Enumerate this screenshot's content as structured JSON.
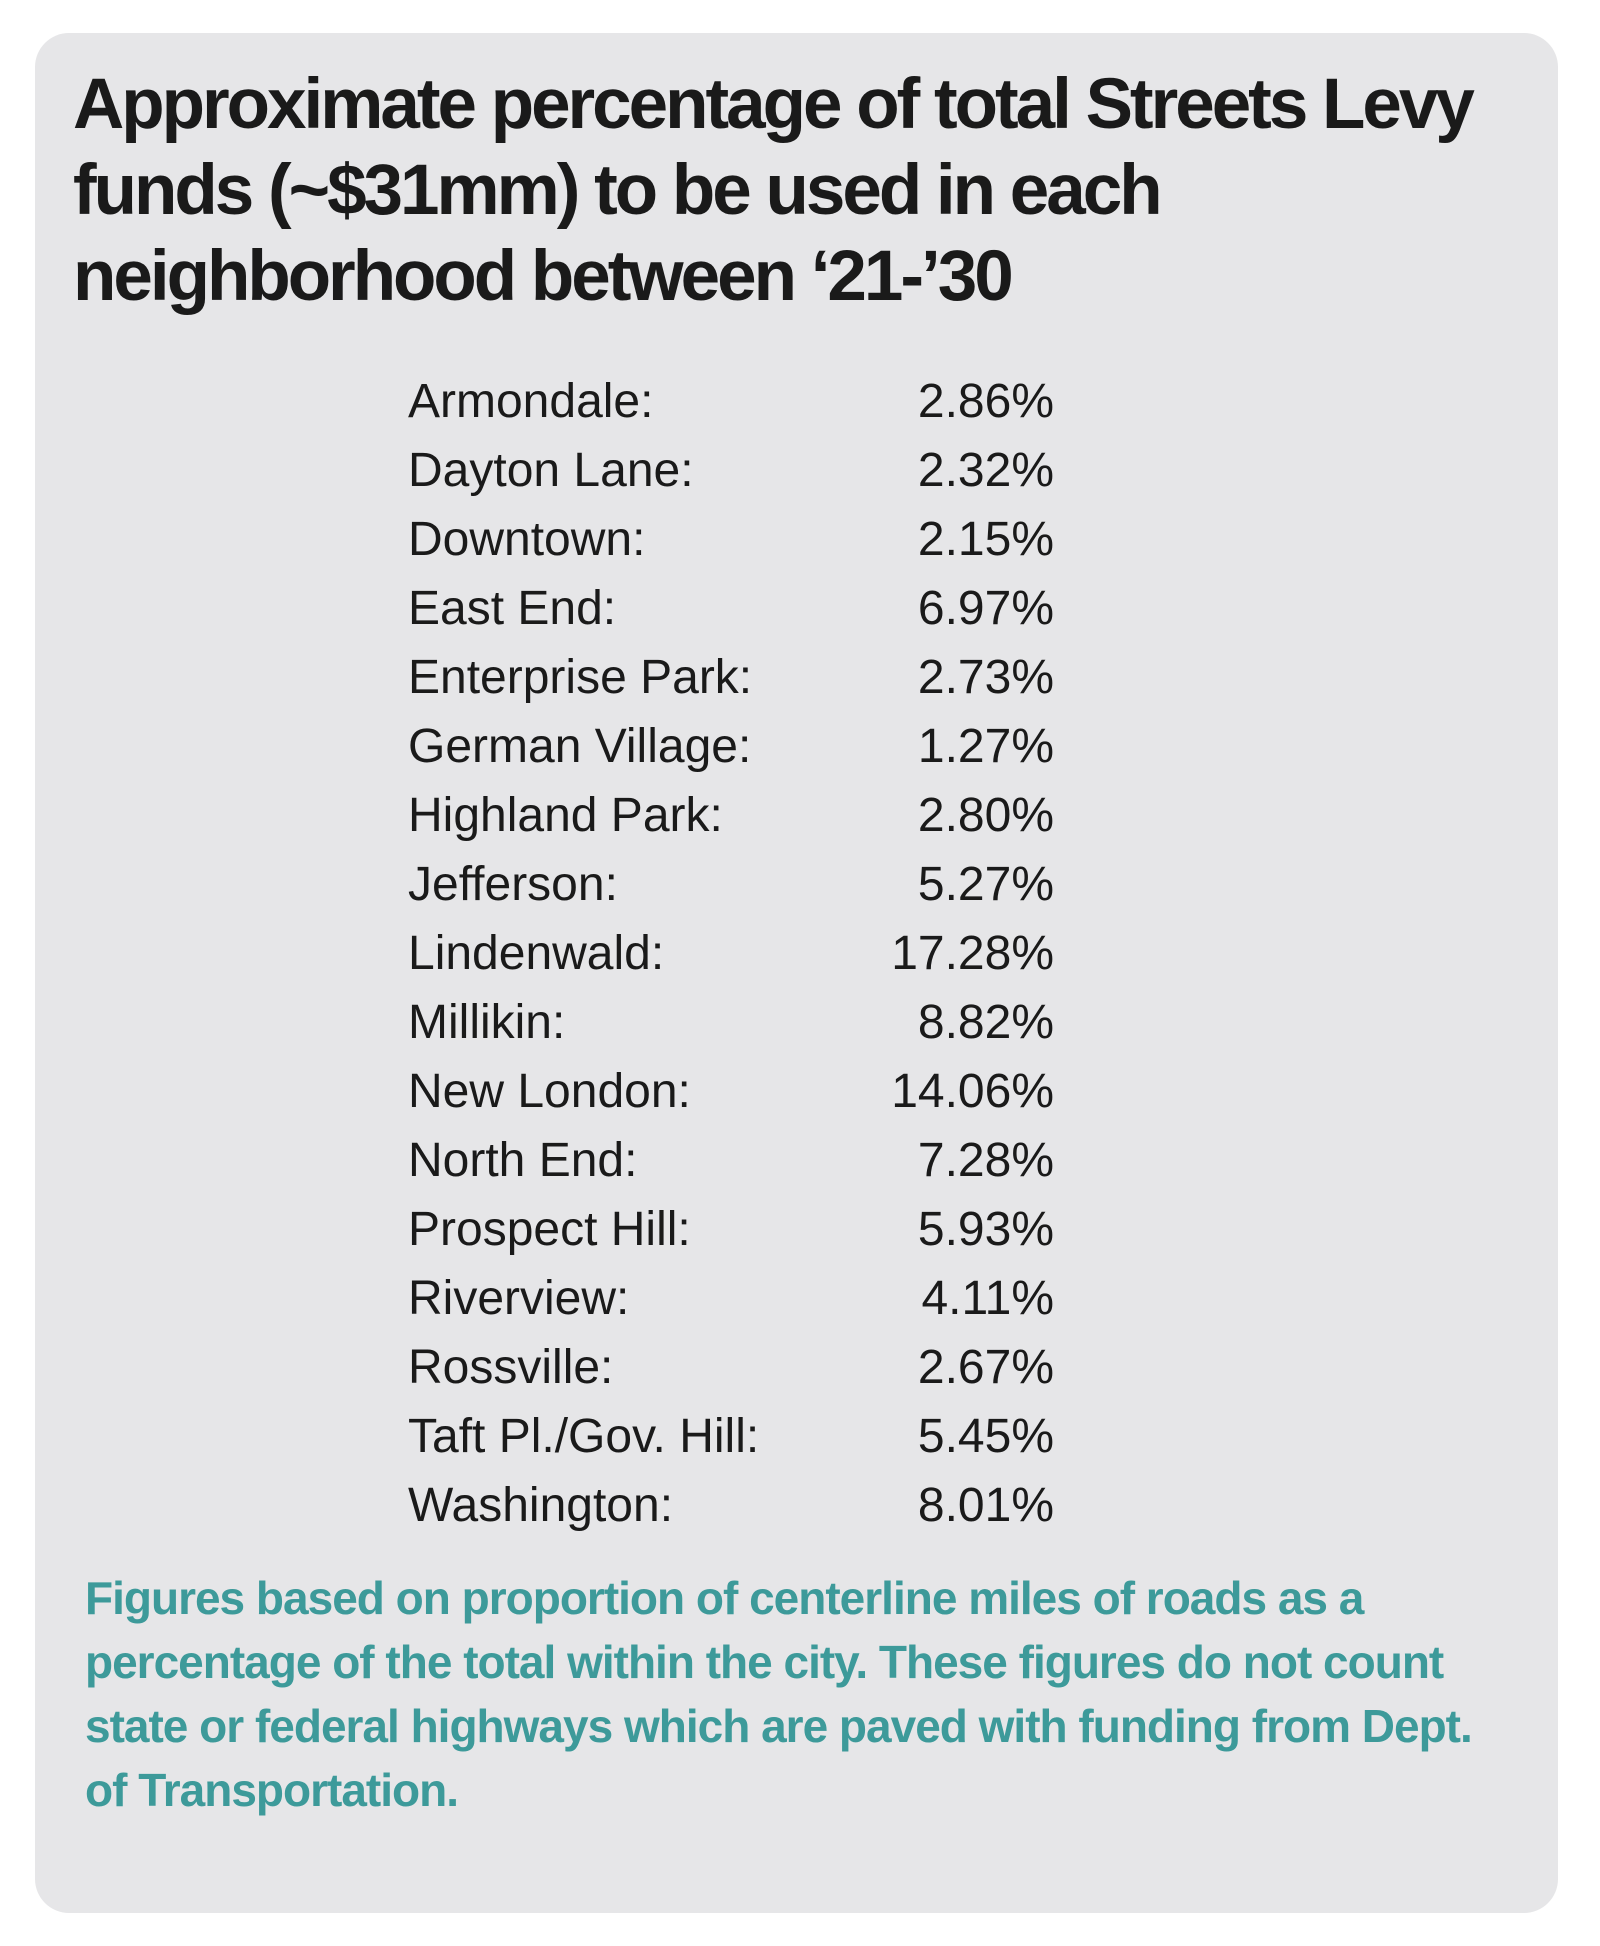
{
  "title": "Approximate percentage of total Streets Levy funds (~$31mm) to be used in each neighborhood between ‘21-’30",
  "neighborhoods": [
    {
      "name": "Armondale:",
      "percent": "2.86%"
    },
    {
      "name": "Dayton Lane:",
      "percent": "2.32%"
    },
    {
      "name": "Downtown:",
      "percent": "2.15%"
    },
    {
      "name": "East End:",
      "percent": "6.97%"
    },
    {
      "name": "Enterprise Park:",
      "percent": "2.73%"
    },
    {
      "name": "German Village:",
      "percent": "1.27%"
    },
    {
      "name": "Highland Park:",
      "percent": "2.80%"
    },
    {
      "name": "Jefferson:",
      "percent": "5.27%"
    },
    {
      "name": "Lindenwald:",
      "percent": "17.28%"
    },
    {
      "name": "Millikin:",
      "percent": "8.82%"
    },
    {
      "name": "New London:",
      "percent": "14.06%"
    },
    {
      "name": "North End:",
      "percent": "7.28%"
    },
    {
      "name": "Prospect Hill:",
      "percent": "5.93%"
    },
    {
      "name": "Riverview:",
      "percent": "4.11%"
    },
    {
      "name": "Rossville:",
      "percent": "2.67%"
    },
    {
      "name": "Taft Pl./Gov. Hill:",
      "percent": "5.45%"
    },
    {
      "name": "Washington:",
      "percent": "8.01%"
    }
  ],
  "footnote": "Figures based on proportion of centerline miles of roads as a percentage of the total within the city. These figures do not count state or federal highways which are paved with funding from Dept. of Transportation.",
  "colors": {
    "card_background": "#e6e6e8",
    "text": "#1a1a1a",
    "footnote": "#3d9a9a"
  }
}
